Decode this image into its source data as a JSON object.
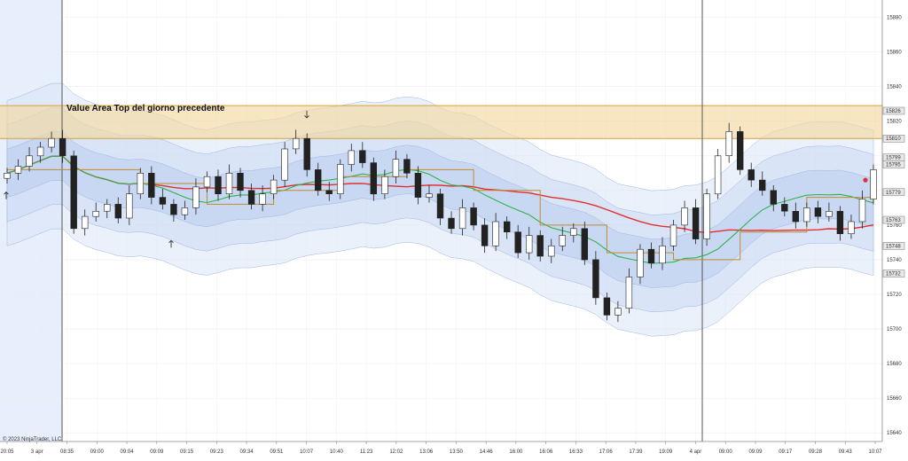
{
  "chart_data": {
    "type": "candlestick",
    "annotation": "Value Area Top del giorno precedente",
    "copyright": "© 2023 NinjaTrader, LLC",
    "y_ticks": [
      15880,
      15860,
      15840,
      15820,
      15800,
      15780,
      15760,
      15740,
      15720,
      15700,
      15680,
      15660,
      15640
    ],
    "ylim": [
      15635,
      15890
    ],
    "price_markers": [
      {
        "label": "15826",
        "value": 15826
      },
      {
        "label": "15810",
        "value": 15810
      },
      {
        "label": "15799",
        "value": 15799
      },
      {
        "label": "15795",
        "value": 15795
      },
      {
        "label": "15779",
        "value": 15779
      },
      {
        "label": "15763",
        "value": 15763
      },
      {
        "label": "15748",
        "value": 15748
      },
      {
        "label": "15732",
        "value": 15732
      }
    ],
    "x_ticks": [
      "20:05",
      "3 apr",
      "08:35",
      "09:00",
      "09:04",
      "09:09",
      "09:15",
      "09:23",
      "09:34",
      "09:51",
      "10:07",
      "10:40",
      "11:23",
      "12:02",
      "13:06",
      "13:50",
      "14:46",
      "16:00",
      "16:06",
      "16:33",
      "17:06",
      "17:39",
      "19:09",
      "4 apr",
      "09:00",
      "09:09",
      "09:17",
      "09:28",
      "09:43",
      "10:07"
    ],
    "value_area_band": [
      15810,
      15829
    ],
    "close_path": [
      15790,
      15794,
      15800,
      15805,
      15810,
      15800,
      15758,
      15765,
      15768,
      15772,
      15764,
      15778,
      15790,
      15776,
      15772,
      15766,
      15770,
      15782,
      15788,
      15778,
      15790,
      15780,
      15772,
      15778,
      15786,
      15804,
      15810,
      15792,
      15780,
      15778,
      15795,
      15803,
      15796,
      15778,
      15788,
      15798,
      15790,
      15776,
      15778,
      15764,
      15758,
      15770,
      15760,
      15748,
      15762,
      15756,
      15744,
      15754,
      15742,
      15748,
      15754,
      15758,
      15740,
      15718,
      15708,
      15712,
      15730,
      15746,
      15738,
      15748,
      15760,
      15770,
      15752,
      15778,
      15800,
      15814,
      15792,
      15786,
      15780,
      15772,
      15768,
      15762,
      15770,
      15765,
      15768,
      15755,
      15762,
      15775,
      15792
    ],
    "series": [
      {
        "name": "",
        "color": "#e03030"
      },
      {
        "name": "",
        "color": "#2eb34a"
      },
      {
        "name": "",
        "color": "#c08a30"
      }
    ],
    "signals": [
      {
        "type": "arrow-down",
        "value": 15824
      },
      {
        "type": "arrow-up",
        "value": 15749
      },
      {
        "type": "arrow-up",
        "value": 15777
      },
      {
        "type": "dot",
        "value": 15786,
        "color": "#e03030"
      }
    ]
  }
}
